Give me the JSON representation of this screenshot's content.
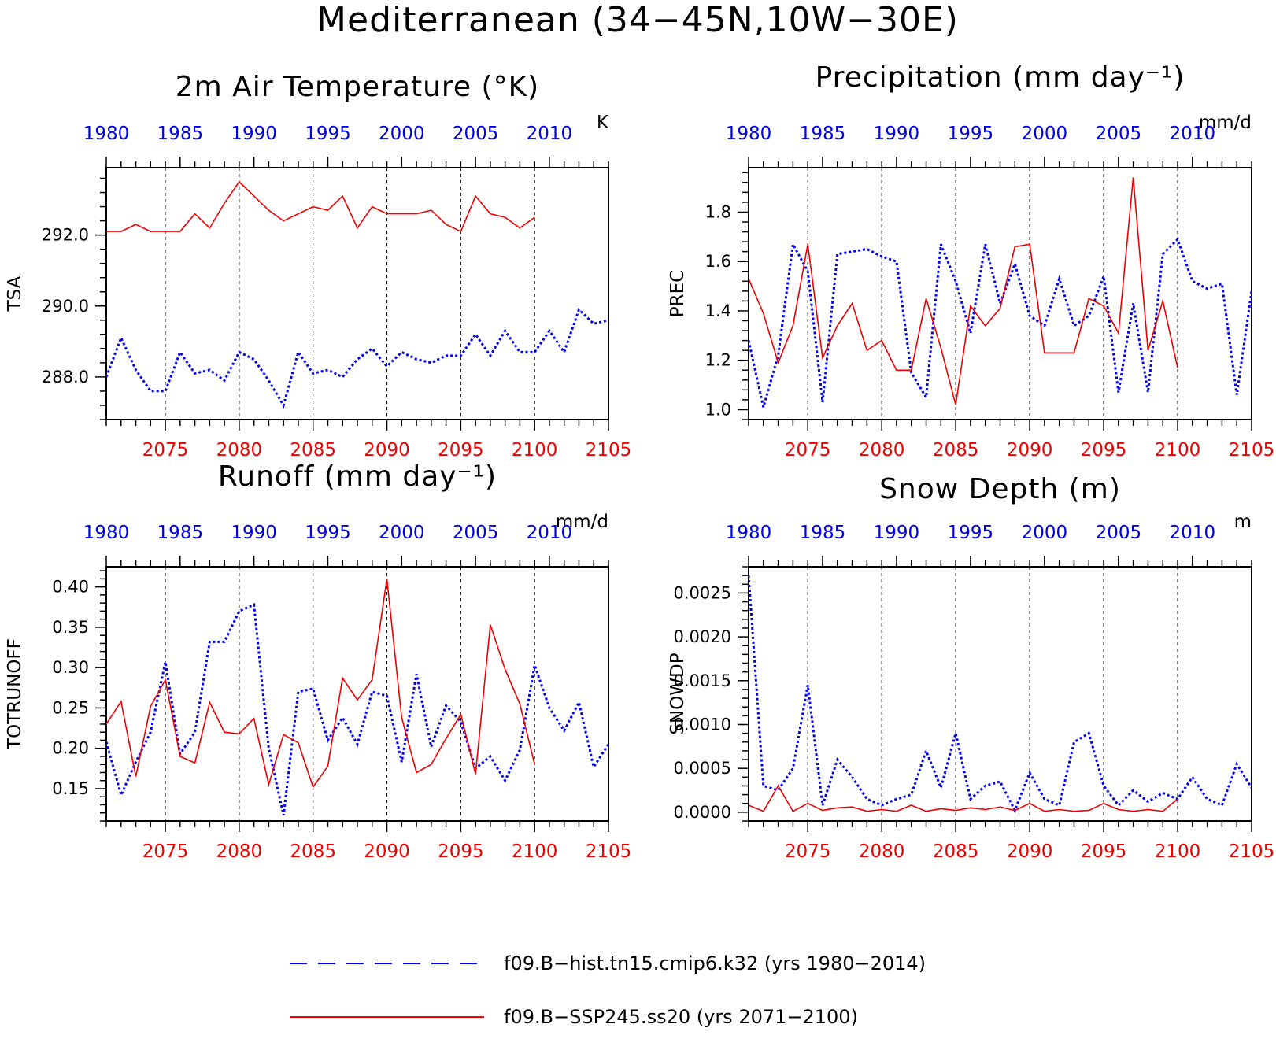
{
  "title": "Mediterranean (34−45N,10W−30E)",
  "legend": [
    {
      "label": "f09.B−hist.tn15.cmip6.k32 (yrs 1980−2014)",
      "color": "#0000ee",
      "style": "dashed"
    },
    {
      "label": "f09.B−SSP245.ss20 (yrs 2071−2100)",
      "color": "#ee0000",
      "style": "solid"
    }
  ],
  "colors": {
    "hist": "#0000ee",
    "ssp": "#ee0000",
    "axis": "#000000"
  },
  "chart_data": [
    {
      "type": "line",
      "title": "2m Air Temperature (°K)",
      "unit": "K",
      "ylabel": "TSA",
      "ylim": [
        286.8,
        293.9
      ],
      "yticks": [
        288.0,
        290.0,
        292.0
      ],
      "ytick_labels": [
        "288.0",
        "290.0",
        "292.0"
      ],
      "bottom_xlim": [
        2071,
        2105
      ],
      "bottom_xticks": [
        2075,
        2080,
        2085,
        2090,
        2095,
        2100,
        2105
      ],
      "top_xticks": [
        1980,
        1985,
        1990,
        1995,
        2000,
        2005,
        2010
      ],
      "series": [
        {
          "name": "f09.B−hist.tn15.cmip6.k32 (yrs 1980−2014)",
          "axis": "top",
          "x_start": 1980,
          "values": [
            288.0,
            289.1,
            288.2,
            287.6,
            287.6,
            288.7,
            288.1,
            288.2,
            287.9,
            288.7,
            288.5,
            287.9,
            287.2,
            288.7,
            288.1,
            288.2,
            288.0,
            288.5,
            288.8,
            288.3,
            288.7,
            288.5,
            288.4,
            288.6,
            288.6,
            289.2,
            288.6,
            289.3,
            288.7,
            288.7,
            289.3,
            288.7,
            289.9,
            289.5,
            289.6
          ]
        },
        {
          "name": "f09.B−SSP245.ss20 (yrs 2071−2100)",
          "axis": "bottom",
          "x_start": 2071,
          "values": [
            292.1,
            292.1,
            292.3,
            292.1,
            292.1,
            292.1,
            292.6,
            292.2,
            292.9,
            293.5,
            293.1,
            292.7,
            292.4,
            292.6,
            292.8,
            292.7,
            293.1,
            292.2,
            292.8,
            292.6,
            292.6,
            292.6,
            292.7,
            292.3,
            292.1,
            293.1,
            292.6,
            292.5,
            292.2,
            292.5
          ]
        }
      ]
    },
    {
      "type": "line",
      "title": "Precipitation (mm day⁻¹)",
      "unit": "mm/d",
      "ylabel": "PREC",
      "ylim": [
        0.96,
        1.98
      ],
      "yticks": [
        1.0,
        1.2,
        1.4,
        1.6,
        1.8
      ],
      "ytick_labels": [
        "1.0",
        "1.2",
        "1.4",
        "1.6",
        "1.8"
      ],
      "bottom_xlim": [
        2071,
        2105
      ],
      "bottom_xticks": [
        2075,
        2080,
        2085,
        2090,
        2095,
        2100,
        2105
      ],
      "top_xticks": [
        1980,
        1985,
        1990,
        1995,
        2000,
        2005,
        2010
      ],
      "series": [
        {
          "name": "f09.B−hist.tn15.cmip6.k32 (yrs 1980−2014)",
          "axis": "top",
          "x_start": 1980,
          "values": [
            1.28,
            1.01,
            1.22,
            1.67,
            1.56,
            1.03,
            1.63,
            1.64,
            1.65,
            1.62,
            1.6,
            1.15,
            1.05,
            1.67,
            1.52,
            1.31,
            1.67,
            1.43,
            1.59,
            1.38,
            1.34,
            1.53,
            1.34,
            1.38,
            1.54,
            1.07,
            1.43,
            1.07,
            1.63,
            1.69,
            1.52,
            1.49,
            1.51,
            1.06,
            1.48
          ]
        },
        {
          "name": "f09.B−SSP245.ss20 (yrs 2071−2100)",
          "axis": "bottom",
          "x_start": 2071,
          "values": [
            1.53,
            1.39,
            1.19,
            1.34,
            1.67,
            1.21,
            1.34,
            1.43,
            1.24,
            1.28,
            1.16,
            1.16,
            1.45,
            1.25,
            1.02,
            1.42,
            1.34,
            1.41,
            1.66,
            1.67,
            1.23,
            1.23,
            1.23,
            1.45,
            1.42,
            1.31,
            1.94,
            1.24,
            1.44,
            1.17
          ]
        }
      ]
    },
    {
      "type": "line",
      "title": "Runoff (mm day⁻¹)",
      "unit": "mm/d",
      "ylabel": "TOTRUNOFF",
      "ylim": [
        0.11,
        0.425
      ],
      "yticks": [
        0.15,
        0.2,
        0.25,
        0.3,
        0.35,
        0.4
      ],
      "ytick_labels": [
        "0.15",
        "0.20",
        "0.25",
        "0.30",
        "0.35",
        "0.40"
      ],
      "bottom_xlim": [
        2071,
        2105
      ],
      "bottom_xticks": [
        2075,
        2080,
        2085,
        2090,
        2095,
        2100,
        2105
      ],
      "top_xticks": [
        1980,
        1985,
        1990,
        1995,
        2000,
        2005,
        2010
      ],
      "series": [
        {
          "name": "f09.B−hist.tn15.cmip6.k32 (yrs 1980−2014)",
          "axis": "top",
          "x_start": 1980,
          "values": [
            0.208,
            0.142,
            0.183,
            0.22,
            0.307,
            0.193,
            0.22,
            0.332,
            0.332,
            0.37,
            0.378,
            0.2,
            0.117,
            0.27,
            0.274,
            0.21,
            0.238,
            0.205,
            0.27,
            0.265,
            0.183,
            0.292,
            0.202,
            0.253,
            0.233,
            0.175,
            0.19,
            0.16,
            0.198,
            0.303,
            0.25,
            0.222,
            0.257,
            0.177,
            0.205
          ]
        },
        {
          "name": "f09.B−SSP245.ss20 (yrs 2071−2100)",
          "axis": "bottom",
          "x_start": 2071,
          "values": [
            0.23,
            0.258,
            0.165,
            0.252,
            0.285,
            0.19,
            0.182,
            0.257,
            0.22,
            0.218,
            0.237,
            0.155,
            0.217,
            0.207,
            0.152,
            0.178,
            0.287,
            0.26,
            0.285,
            0.41,
            0.238,
            0.17,
            0.18,
            0.212,
            0.242,
            0.168,
            0.353,
            0.298,
            0.255,
            0.18
          ]
        }
      ]
    },
    {
      "type": "line",
      "title": "Snow Depth (m)",
      "unit": "m",
      "ylabel": "SNOWDP",
      "ylim": [
        -0.0001,
        0.0028
      ],
      "yticks": [
        0.0,
        0.0005,
        0.001,
        0.0015,
        0.002,
        0.0025
      ],
      "ytick_labels": [
        "0.0000",
        "0.0005",
        "0.0010",
        "0.0015",
        "0.0020",
        "0.0025"
      ],
      "bottom_xlim": [
        2071,
        2105
      ],
      "bottom_xticks": [
        2075,
        2080,
        2085,
        2090,
        2095,
        2100,
        2105
      ],
      "top_xticks": [
        1980,
        1985,
        1990,
        1995,
        2000,
        2005,
        2010
      ],
      "series": [
        {
          "name": "f09.B−hist.tn15.cmip6.k32 (yrs 1980−2014)",
          "axis": "top",
          "x_start": 1980,
          "values": [
            0.0027,
            0.0003,
            0.00025,
            0.0005,
            0.00145,
            8e-05,
            0.0006,
            0.0004,
            0.00015,
            8e-05,
            0.00015,
            0.0002,
            0.0007,
            0.00028,
            0.0009,
            0.00015,
            0.0003,
            0.00035,
            2e-05,
            0.00045,
            0.00015,
            8e-05,
            0.0008,
            0.0009,
            0.0003,
            8e-05,
            0.00025,
            0.00012,
            0.00022,
            0.00015,
            0.0004,
            0.00015,
            8e-05,
            0.00055,
            0.00028
          ]
        },
        {
          "name": "f09.B−SSP245.ss20 (yrs 2071−2100)",
          "axis": "bottom",
          "x_start": 2071,
          "values": [
            8e-05,
            1e-05,
            0.0003,
            1e-05,
            0.0001,
            2e-05,
            5e-05,
            6e-05,
            1e-05,
            3e-05,
            1e-05,
            8e-05,
            1e-05,
            4e-05,
            2e-05,
            5e-05,
            3e-05,
            6e-05,
            2e-05,
            0.0001,
            1e-05,
            3e-05,
            1e-05,
            2e-05,
            0.0001,
            3e-05,
            1e-05,
            3e-05,
            1e-05,
            0.00015
          ]
        }
      ]
    }
  ]
}
